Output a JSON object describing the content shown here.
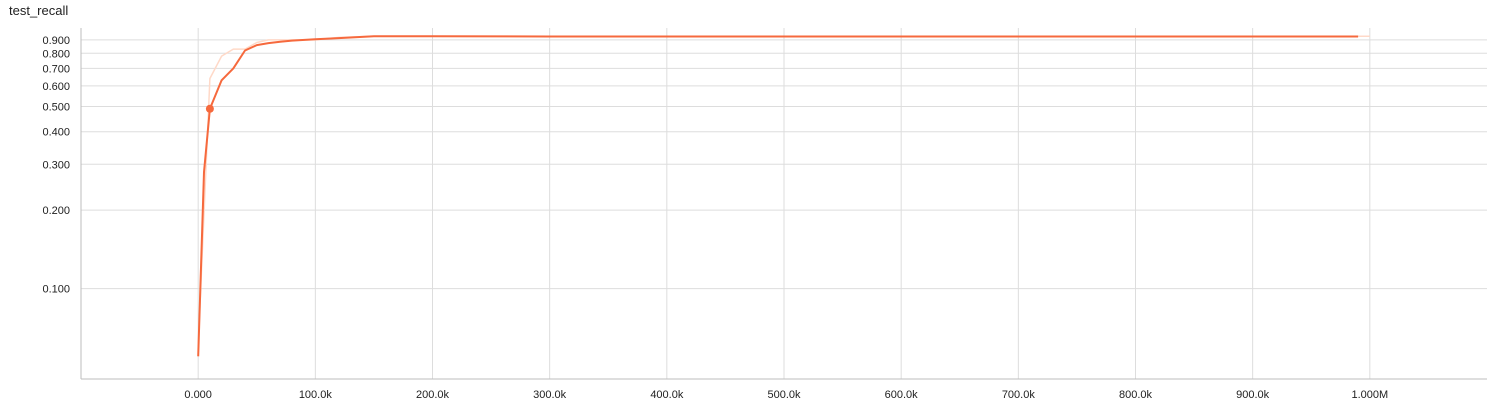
{
  "chart_data": {
    "type": "line",
    "title": "test_recall",
    "xlabel": "",
    "ylabel": "",
    "yscale": "log",
    "grid": true,
    "xlim": [
      -100000,
      1100000
    ],
    "ylim": [
      0.045,
      1.0
    ],
    "x_ticks": [
      {
        "value": 0,
        "label": "0.000"
      },
      {
        "value": 100000,
        "label": "100.0k"
      },
      {
        "value": 200000,
        "label": "200.0k"
      },
      {
        "value": 300000,
        "label": "300.0k"
      },
      {
        "value": 400000,
        "label": "400.0k"
      },
      {
        "value": 500000,
        "label": "500.0k"
      },
      {
        "value": 600000,
        "label": "600.0k"
      },
      {
        "value": 700000,
        "label": "700.0k"
      },
      {
        "value": 800000,
        "label": "800.0k"
      },
      {
        "value": 900000,
        "label": "900.0k"
      },
      {
        "value": 1000000,
        "label": "1.000M"
      }
    ],
    "y_ticks": [
      {
        "value": 0.1,
        "label": "0.100"
      },
      {
        "value": 0.2,
        "label": "0.200"
      },
      {
        "value": 0.3,
        "label": "0.300"
      },
      {
        "value": 0.4,
        "label": "0.400"
      },
      {
        "value": 0.5,
        "label": "0.500"
      },
      {
        "value": 0.6,
        "label": "0.600"
      },
      {
        "value": 0.7,
        "label": "0.700"
      },
      {
        "value": 0.8,
        "label": "0.800"
      },
      {
        "value": 0.9,
        "label": "0.900"
      }
    ],
    "series": [
      {
        "role": "raw",
        "color": "#ffd9c8",
        "x": [
          0,
          10000,
          20000,
          30000,
          40000,
          50000,
          60000,
          80000,
          100000,
          120000,
          150000,
          200000,
          1000000
        ],
        "y": [
          0.06,
          0.64,
          0.78,
          0.83,
          0.83,
          0.88,
          0.9,
          0.9,
          0.9,
          0.92,
          0.93,
          0.93,
          0.93
        ]
      },
      {
        "role": "smoothed",
        "color": "#f6693d",
        "x": [
          0,
          5000,
          10000,
          20000,
          30000,
          40000,
          50000,
          60000,
          70000,
          80000,
          100000,
          120000,
          150000,
          200000,
          300000,
          400000,
          500000,
          600000,
          700000,
          800000,
          900000,
          990000
        ],
        "y": [
          0.055,
          0.28,
          0.49,
          0.63,
          0.7,
          0.82,
          0.86,
          0.875,
          0.885,
          0.895,
          0.905,
          0.915,
          0.93,
          0.93,
          0.928,
          0.928,
          0.928,
          0.928,
          0.928,
          0.928,
          0.928,
          0.928
        ]
      }
    ],
    "highlight_point": {
      "x": 10000,
      "y": 0.49,
      "color": "#f6693d"
    }
  }
}
